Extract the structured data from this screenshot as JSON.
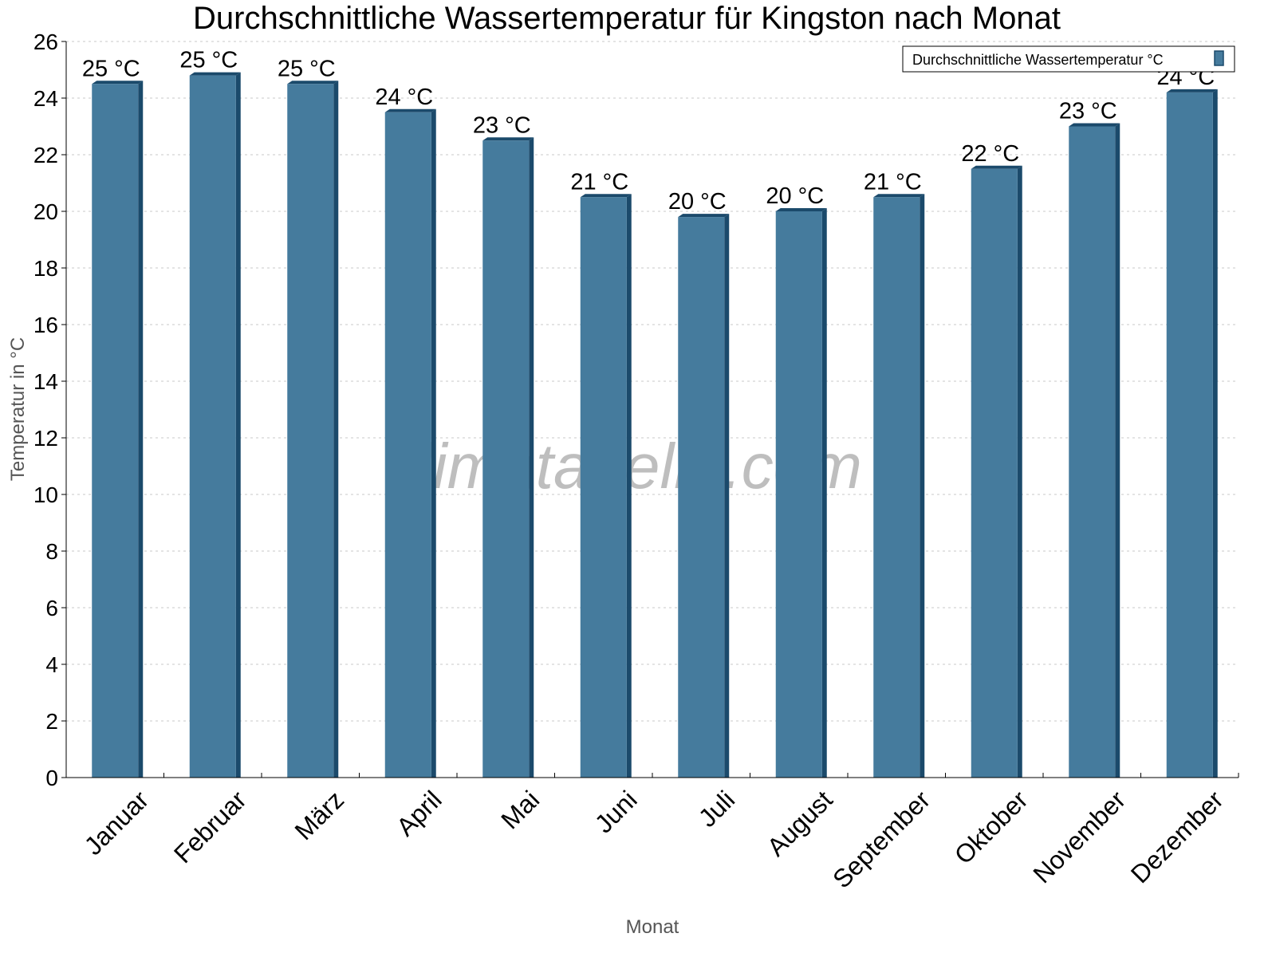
{
  "chart_data": {
    "type": "bar",
    "title": "Durchschnittliche Wassertemperatur für Kingston nach Monat",
    "xlabel": "Monat",
    "ylabel": "Temperatur in °C",
    "ylim": [
      0,
      26
    ],
    "yticks": [
      0,
      2,
      4,
      6,
      8,
      10,
      12,
      14,
      16,
      18,
      20,
      22,
      24,
      26
    ],
    "grid": true,
    "legend_position": "top-right",
    "categories": [
      "Januar",
      "Februar",
      "März",
      "April",
      "Mai",
      "Juni",
      "Juli",
      "August",
      "September",
      "Oktober",
      "November",
      "Dezember"
    ],
    "series": [
      {
        "name": "Durchschnittliche Wassertemperatur °C",
        "color": "#457b9d",
        "values": [
          24.5,
          24.8,
          24.5,
          23.5,
          22.5,
          20.5,
          19.8,
          20.0,
          20.5,
          21.5,
          23.0,
          24.2
        ],
        "data_labels": [
          "25 °C",
          "25 °C",
          "25 °C",
          "24 °C",
          "23 °C",
          "21 °C",
          "20 °C",
          "20 °C",
          "21 °C",
          "22 °C",
          "23 °C",
          "24 °C"
        ]
      }
    ]
  },
  "watermark": "klimatabelle.com"
}
